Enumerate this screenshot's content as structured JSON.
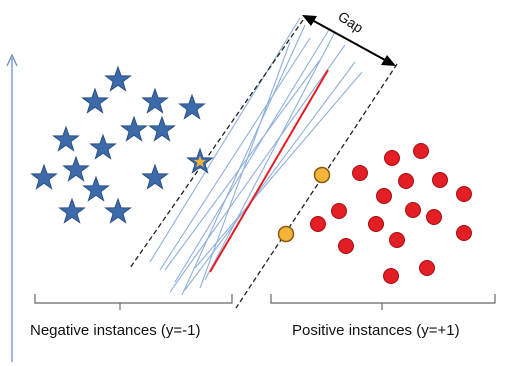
{
  "gap_label": "Gap",
  "negative_label": "Negative instances (y=-1)",
  "positive_label": "Positive instances (y=+1)",
  "colors": {
    "star_fill": "#3d6aa8",
    "star_stroke": "#2a4f85",
    "circle_fill": "#e31e24",
    "circle_stroke": "#a50f13",
    "support_fill": "#f4b43c",
    "support_stroke": "#8a5a10",
    "candidate_line": "#8fb0dc",
    "optimal_line": "#e31e24",
    "margin_line": "#222222",
    "axis": "#6a8fc7",
    "bracket": "#666666"
  },
  "icons": {
    "negative_marker": "star-icon",
    "positive_marker": "circle-icon"
  }
}
